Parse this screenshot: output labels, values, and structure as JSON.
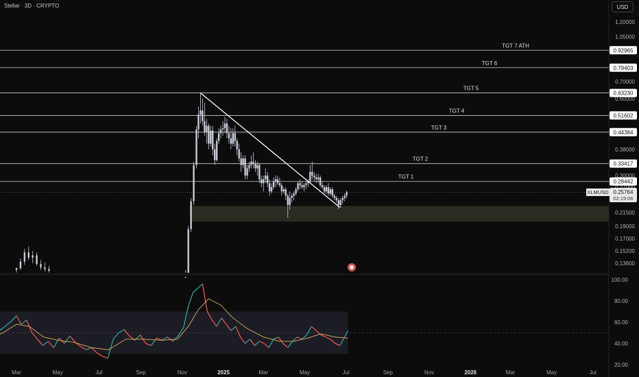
{
  "header": {
    "title": "Stellar · 3D · CRYPTO",
    "currency_button": "USD"
  },
  "symbol": {
    "label": "XLMUSD",
    "price": "0.25764",
    "countdown": "02:19:06"
  },
  "colors": {
    "background": "#0c0c0c",
    "candles": "#c8ccd8",
    "level_line": "#d0d0d0",
    "support_zone": "#2a2c22",
    "rsi_band": "#1c1c24",
    "rsi_up": "#26a69a",
    "rsi_down": "#ef5350",
    "rsi_ma": "#e0b060",
    "trendline": "#ffffff"
  },
  "chart_data": [
    {
      "type": "candlestick",
      "scale": "log",
      "ylim": [
        0.125,
        1.3
      ],
      "y_ticks": [
        "1.20000",
        "1.05000",
        "0.70000",
        "0.60000",
        "0.38000",
        "0.30000",
        "0.27000",
        "0.21500",
        "0.19000",
        "0.17000",
        "0.15200",
        "0.13600"
      ],
      "targets": [
        {
          "label": "TGT 7 ATH",
          "value": 0.92965,
          "value_text": "0.92965"
        },
        {
          "label": "TGT 6",
          "value": 0.79403,
          "value_text": "0.79403"
        },
        {
          "label": "TGT 5",
          "value": 0.6323,
          "value_text": "0.63230"
        },
        {
          "label": "TGT 4",
          "value": 0.51602,
          "value_text": "0.51602"
        },
        {
          "label": "TGT 3",
          "value": 0.44384,
          "value_text": "0.44384"
        },
        {
          "label": "TGT 2",
          "value": 0.33417,
          "value_text": "0.33417"
        },
        {
          "label": "TGT 1",
          "value": 0.28442,
          "value_text": "0.28442"
        }
      ],
      "support_zone": [
        0.198,
        0.228
      ],
      "trendline": {
        "from": [
          "2024-11-28",
          0.632
        ],
        "to": [
          "2025-06-22",
          0.225
        ]
      },
      "candles": [
        [
          "2024-03-01",
          0.128,
          0.131,
          0.125,
          0.13
        ],
        [
          "2024-03-07",
          0.13,
          0.142,
          0.128,
          0.138
        ],
        [
          "2024-03-13",
          0.138,
          0.155,
          0.134,
          0.15
        ],
        [
          "2024-03-19",
          0.15,
          0.158,
          0.14,
          0.143
        ],
        [
          "2024-03-25",
          0.143,
          0.152,
          0.136,
          0.146
        ],
        [
          "2024-03-31",
          0.146,
          0.15,
          0.133,
          0.135
        ],
        [
          "2024-04-06",
          0.135,
          0.14,
          0.128,
          0.131
        ],
        [
          "2024-04-12",
          0.131,
          0.137,
          0.126,
          0.129
        ],
        [
          "2024-04-18",
          0.129,
          0.133,
          0.125,
          0.127
        ],
        [
          "2024-11-06",
          0.09,
          0.128,
          0.088,
          0.12
        ],
        [
          "2024-11-10",
          0.12,
          0.19,
          0.118,
          0.185
        ],
        [
          "2024-11-14",
          0.185,
          0.245,
          0.18,
          0.238
        ],
        [
          "2024-11-18",
          0.238,
          0.34,
          0.23,
          0.33
        ],
        [
          "2024-11-22",
          0.33,
          0.47,
          0.32,
          0.455
        ],
        [
          "2024-11-25",
          0.455,
          0.56,
          0.42,
          0.52
        ],
        [
          "2024-11-28",
          0.52,
          0.632,
          0.48,
          0.54
        ],
        [
          "2024-12-01",
          0.54,
          0.6,
          0.47,
          0.49
        ],
        [
          "2024-12-04",
          0.49,
          0.58,
          0.43,
          0.445
        ],
        [
          "2024-12-07",
          0.445,
          0.5,
          0.4,
          0.47
        ],
        [
          "2024-12-10",
          0.47,
          0.48,
          0.38,
          0.4
        ],
        [
          "2024-12-13",
          0.4,
          0.47,
          0.39,
          0.45
        ],
        [
          "2024-12-16",
          0.45,
          0.47,
          0.36,
          0.38
        ],
        [
          "2024-12-19",
          0.38,
          0.4,
          0.33,
          0.345
        ],
        [
          "2024-12-22",
          0.345,
          0.42,
          0.34,
          0.41
        ],
        [
          "2024-12-25",
          0.41,
          0.46,
          0.4,
          0.44
        ],
        [
          "2024-12-28",
          0.44,
          0.47,
          0.42,
          0.455
        ],
        [
          "2024-12-31",
          0.455,
          0.49,
          0.43,
          0.46
        ],
        [
          "2025-01-03",
          0.46,
          0.51,
          0.44,
          0.48
        ],
        [
          "2025-01-06",
          0.48,
          0.5,
          0.42,
          0.44
        ],
        [
          "2025-01-09",
          0.44,
          0.47,
          0.4,
          0.42
        ],
        [
          "2025-01-12",
          0.42,
          0.46,
          0.38,
          0.4
        ],
        [
          "2025-01-15",
          0.4,
          0.46,
          0.39,
          0.44
        ],
        [
          "2025-01-18",
          0.44,
          0.47,
          0.39,
          0.41
        ],
        [
          "2025-01-21",
          0.41,
          0.42,
          0.36,
          0.38
        ],
        [
          "2025-01-24",
          0.38,
          0.4,
          0.34,
          0.35
        ],
        [
          "2025-01-27",
          0.35,
          0.37,
          0.31,
          0.33
        ],
        [
          "2025-01-30",
          0.33,
          0.36,
          0.32,
          0.35
        ],
        [
          "2025-02-02",
          0.35,
          0.36,
          0.29,
          0.3
        ],
        [
          "2025-02-05",
          0.3,
          0.33,
          0.29,
          0.32
        ],
        [
          "2025-02-08",
          0.32,
          0.34,
          0.31,
          0.33
        ],
        [
          "2025-02-11",
          0.33,
          0.36,
          0.32,
          0.34
        ],
        [
          "2025-02-14",
          0.34,
          0.37,
          0.32,
          0.335
        ],
        [
          "2025-02-17",
          0.335,
          0.345,
          0.31,
          0.32
        ],
        [
          "2025-02-20",
          0.32,
          0.34,
          0.3,
          0.33
        ],
        [
          "2025-02-23",
          0.33,
          0.335,
          0.28,
          0.29
        ],
        [
          "2025-02-26",
          0.29,
          0.3,
          0.27,
          0.28
        ],
        [
          "2025-03-01",
          0.28,
          0.3,
          0.26,
          0.29
        ],
        [
          "2025-03-04",
          0.29,
          0.32,
          0.28,
          0.3
        ],
        [
          "2025-03-07",
          0.3,
          0.31,
          0.27,
          0.28
        ],
        [
          "2025-03-10",
          0.28,
          0.29,
          0.25,
          0.26
        ],
        [
          "2025-03-13",
          0.26,
          0.28,
          0.255,
          0.27
        ],
        [
          "2025-03-16",
          0.27,
          0.295,
          0.265,
          0.285
        ],
        [
          "2025-03-19",
          0.285,
          0.3,
          0.27,
          0.29
        ],
        [
          "2025-03-22",
          0.29,
          0.3,
          0.275,
          0.28
        ],
        [
          "2025-03-25",
          0.28,
          0.295,
          0.27,
          0.275
        ],
        [
          "2025-03-28",
          0.275,
          0.28,
          0.25,
          0.26
        ],
        [
          "2025-03-31",
          0.26,
          0.27,
          0.255,
          0.265
        ],
        [
          "2025-04-03",
          0.265,
          0.27,
          0.24,
          0.25
        ],
        [
          "2025-04-06",
          0.25,
          0.255,
          0.205,
          0.23
        ],
        [
          "2025-04-09",
          0.23,
          0.26,
          0.22,
          0.245
        ],
        [
          "2025-04-12",
          0.245,
          0.255,
          0.235,
          0.25
        ],
        [
          "2025-04-15",
          0.25,
          0.26,
          0.24,
          0.255
        ],
        [
          "2025-04-18",
          0.255,
          0.27,
          0.25,
          0.265
        ],
        [
          "2025-04-21",
          0.265,
          0.285,
          0.26,
          0.28
        ],
        [
          "2025-04-24",
          0.28,
          0.29,
          0.265,
          0.275
        ],
        [
          "2025-04-27",
          0.275,
          0.285,
          0.265,
          0.27
        ],
        [
          "2025-04-30",
          0.27,
          0.28,
          0.26,
          0.275
        ],
        [
          "2025-05-03",
          0.275,
          0.285,
          0.265,
          0.28
        ],
        [
          "2025-05-06",
          0.28,
          0.29,
          0.27,
          0.285
        ],
        [
          "2025-05-09",
          0.285,
          0.33,
          0.28,
          0.31
        ],
        [
          "2025-05-12",
          0.31,
          0.34,
          0.29,
          0.3
        ],
        [
          "2025-05-15",
          0.3,
          0.31,
          0.285,
          0.295
        ],
        [
          "2025-05-18",
          0.295,
          0.305,
          0.28,
          0.29
        ],
        [
          "2025-05-21",
          0.29,
          0.305,
          0.28,
          0.295
        ],
        [
          "2025-05-24",
          0.295,
          0.3,
          0.27,
          0.275
        ],
        [
          "2025-05-27",
          0.275,
          0.285,
          0.265,
          0.27
        ],
        [
          "2025-05-30",
          0.27,
          0.275,
          0.255,
          0.26
        ],
        [
          "2025-06-02",
          0.26,
          0.275,
          0.255,
          0.27
        ],
        [
          "2025-06-05",
          0.27,
          0.28,
          0.25,
          0.255
        ],
        [
          "2025-06-08",
          0.255,
          0.27,
          0.25,
          0.265
        ],
        [
          "2025-06-11",
          0.265,
          0.27,
          0.245,
          0.25
        ],
        [
          "2025-06-14",
          0.25,
          0.255,
          0.24,
          0.245
        ],
        [
          "2025-06-17",
          0.245,
          0.25,
          0.235,
          0.24
        ],
        [
          "2025-06-20",
          0.24,
          0.245,
          0.222,
          0.23
        ],
        [
          "2025-06-23",
          0.23,
          0.245,
          0.225,
          0.24
        ],
        [
          "2025-06-26",
          0.24,
          0.25,
          0.232,
          0.245
        ],
        [
          "2025-06-29",
          0.245,
          0.255,
          0.238,
          0.25
        ],
        [
          "2025-07-02",
          0.25,
          0.262,
          0.244,
          0.258
        ]
      ]
    },
    {
      "type": "line",
      "name": "",
      "ylim": [
        18,
        104
      ],
      "y_ticks": [
        "100.00",
        "80.00",
        "60.00",
        "40.00",
        "20.00"
      ],
      "band": [
        30,
        70
      ],
      "midline": 50,
      "rsi": [
        [
          "2024-01-20",
          44
        ],
        [
          "2024-01-28",
          48
        ],
        [
          "2024-02-05",
          52
        ],
        [
          "2024-02-13",
          56
        ],
        [
          "2024-02-21",
          60
        ],
        [
          "2024-03-01",
          66
        ],
        [
          "2024-03-08",
          58
        ],
        [
          "2024-03-16",
          62
        ],
        [
          "2024-03-24",
          50
        ],
        [
          "2024-04-01",
          44
        ],
        [
          "2024-04-09",
          38
        ],
        [
          "2024-04-17",
          42
        ],
        [
          "2024-04-25",
          36
        ],
        [
          "2024-05-03",
          45
        ],
        [
          "2024-05-11",
          40
        ],
        [
          "2024-05-19",
          47
        ],
        [
          "2024-05-27",
          41
        ],
        [
          "2024-06-04",
          37
        ],
        [
          "2024-06-12",
          34
        ],
        [
          "2024-06-20",
          36
        ],
        [
          "2024-06-28",
          31
        ],
        [
          "2024-07-06",
          28
        ],
        [
          "2024-07-14",
          26
        ],
        [
          "2024-07-22",
          44
        ],
        [
          "2024-07-30",
          50
        ],
        [
          "2024-08-07",
          53
        ],
        [
          "2024-08-15",
          47
        ],
        [
          "2024-08-23",
          43
        ],
        [
          "2024-08-31",
          48
        ],
        [
          "2024-09-08",
          40
        ],
        [
          "2024-09-16",
          38
        ],
        [
          "2024-09-24",
          45
        ],
        [
          "2024-10-02",
          43
        ],
        [
          "2024-10-10",
          46
        ],
        [
          "2024-10-18",
          42
        ],
        [
          "2024-10-26",
          47
        ],
        [
          "2024-11-03",
          55
        ],
        [
          "2024-11-10",
          75
        ],
        [
          "2024-11-17",
          88
        ],
        [
          "2024-11-24",
          92
        ],
        [
          "2024-12-01",
          96
        ],
        [
          "2024-12-08",
          70
        ],
        [
          "2024-12-15",
          62
        ],
        [
          "2024-12-22",
          56
        ],
        [
          "2024-12-29",
          64
        ],
        [
          "2025-01-05",
          58
        ],
        [
          "2025-01-12",
          52
        ],
        [
          "2025-01-19",
          56
        ],
        [
          "2025-01-26",
          46
        ],
        [
          "2025-02-02",
          40
        ],
        [
          "2025-02-09",
          44
        ],
        [
          "2025-02-16",
          38
        ],
        [
          "2025-02-23",
          42
        ],
        [
          "2025-03-02",
          40
        ],
        [
          "2025-03-09",
          36
        ],
        [
          "2025-03-16",
          44
        ],
        [
          "2025-03-23",
          46
        ],
        [
          "2025-03-30",
          40
        ],
        [
          "2025-04-06",
          36
        ],
        [
          "2025-04-13",
          42
        ],
        [
          "2025-04-20",
          46
        ],
        [
          "2025-04-27",
          44
        ],
        [
          "2025-05-04",
          48
        ],
        [
          "2025-05-11",
          56
        ],
        [
          "2025-05-18",
          52
        ],
        [
          "2025-05-25",
          48
        ],
        [
          "2025-06-01",
          46
        ],
        [
          "2025-06-08",
          44
        ],
        [
          "2025-06-15",
          40
        ],
        [
          "2025-06-22",
          38
        ],
        [
          "2025-06-29",
          46
        ],
        [
          "2025-07-04",
          52
        ]
      ],
      "rsi_ma": [
        [
          "2024-01-20",
          45
        ],
        [
          "2024-02-10",
          50
        ],
        [
          "2024-03-01",
          58
        ],
        [
          "2024-03-20",
          56
        ],
        [
          "2024-04-10",
          46
        ],
        [
          "2024-05-01",
          43
        ],
        [
          "2024-05-25",
          41
        ],
        [
          "2024-06-20",
          36
        ],
        [
          "2024-07-15",
          34
        ],
        [
          "2024-08-10",
          44
        ],
        [
          "2024-09-05",
          44
        ],
        [
          "2024-10-01",
          43
        ],
        [
          "2024-10-25",
          44
        ],
        [
          "2024-11-10",
          56
        ],
        [
          "2024-11-25",
          72
        ],
        [
          "2024-12-10",
          82
        ],
        [
          "2024-12-28",
          76
        ],
        [
          "2025-01-15",
          64
        ],
        [
          "2025-02-05",
          54
        ],
        [
          "2025-03-01",
          46
        ],
        [
          "2025-03-25",
          42
        ],
        [
          "2025-04-15",
          42
        ],
        [
          "2025-05-05",
          45
        ],
        [
          "2025-05-25",
          49
        ],
        [
          "2025-06-15",
          46
        ],
        [
          "2025-07-04",
          45
        ]
      ]
    }
  ],
  "x_axis": {
    "ticks": [
      [
        "2024-03-01",
        "Mar"
      ],
      [
        "2024-05-01",
        "May"
      ],
      [
        "2024-07-01",
        "Jul"
      ],
      [
        "2024-09-01",
        "Sep"
      ],
      [
        "2024-11-01",
        "Nov"
      ],
      [
        "2025-01-01",
        "2025"
      ],
      [
        "2025-03-01",
        "Mar"
      ],
      [
        "2025-05-01",
        "May"
      ],
      [
        "2025-07-01",
        "Jul"
      ],
      [
        "2025-09-01",
        "Sep"
      ],
      [
        "2025-11-01",
        "Nov"
      ],
      [
        "2026-01-01",
        "2026"
      ],
      [
        "2026-03-01",
        "Mar"
      ],
      [
        "2026-05-01",
        "May"
      ],
      [
        "2026-07-01",
        "Jul"
      ]
    ]
  }
}
